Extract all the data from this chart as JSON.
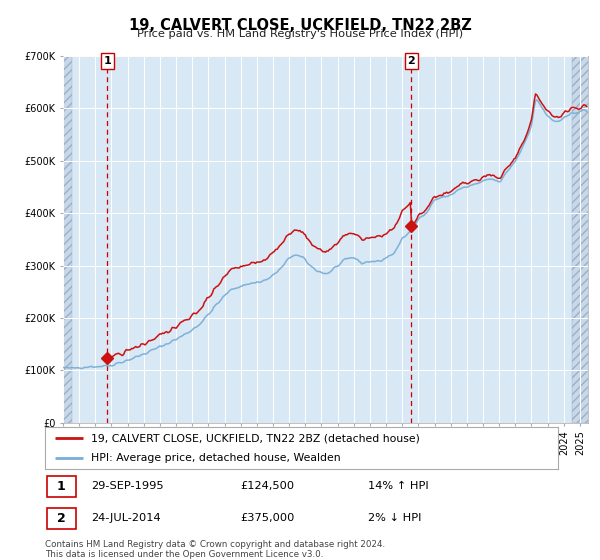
{
  "title": "19, CALVERT CLOSE, UCKFIELD, TN22 2BZ",
  "subtitle": "Price paid vs. HM Land Registry's House Price Index (HPI)",
  "legend_line1": "19, CALVERT CLOSE, UCKFIELD, TN22 2BZ (detached house)",
  "legend_line2": "HPI: Average price, detached house, Wealden",
  "annotation1_date": "29-SEP-1995",
  "annotation1_price": "£124,500",
  "annotation1_hpi": "14% ↑ HPI",
  "annotation2_date": "24-JUL-2014",
  "annotation2_price": "£375,000",
  "annotation2_hpi": "2% ↓ HPI",
  "footer": "Contains HM Land Registry data © Crown copyright and database right 2024.\nThis data is licensed under the Open Government Licence v3.0.",
  "hpi_color": "#7aaed6",
  "price_color": "#cc1111",
  "bg_color": "#d8e8f4",
  "vline_color": "#cc0000",
  "ylim": [
    0,
    700000
  ],
  "sale1_year": 1995.75,
  "sale1_price": 124500,
  "sale2_year": 2014.56,
  "sale2_price": 375000,
  "xmin": 1993.0,
  "xmax": 2025.5
}
